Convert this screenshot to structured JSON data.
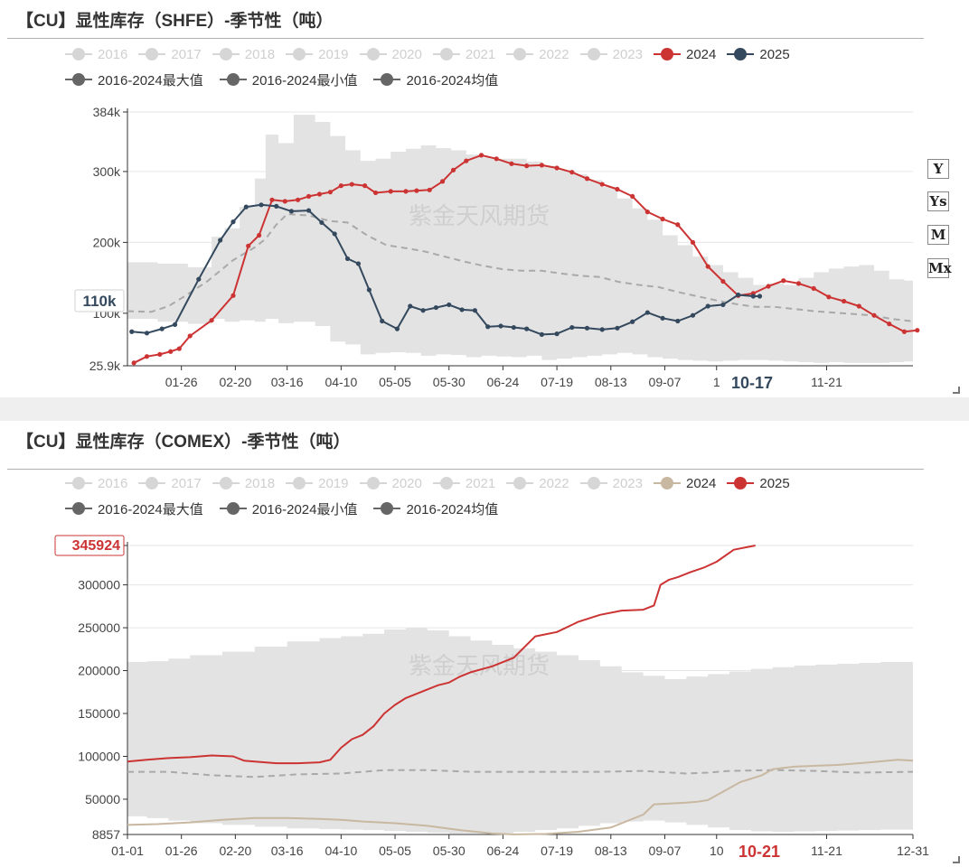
{
  "watermark": "紫金天风期货",
  "colors": {
    "c2024": "#cc3333",
    "c2025": "#34495e",
    "c2024_comex": "#c9b8a1",
    "c2025_comex": "#cc3333",
    "legend_off": "#d6d6d6",
    "legend_stat": "#666666",
    "band": "#e3e3e3",
    "mean": "#a9a9a9"
  },
  "toolbox": [
    "Y",
    "Ys",
    "M",
    "Mx"
  ],
  "charts": [
    {
      "id": "shfe",
      "title": "【CU】显性库存（SHFE）-季节性（吨）",
      "legend_row1": [
        {
          "label": "2016",
          "active": false
        },
        {
          "label": "2017",
          "active": false
        },
        {
          "label": "2018",
          "active": false
        },
        {
          "label": "2019",
          "active": false
        },
        {
          "label": "2020",
          "active": false
        },
        {
          "label": "2021",
          "active": false
        },
        {
          "label": "2022",
          "active": false
        },
        {
          "label": "2023",
          "active": false
        },
        {
          "label": "2024",
          "active": true,
          "color": "#cc3333"
        },
        {
          "label": "2025",
          "active": true,
          "color": "#34495e"
        }
      ],
      "legend_row2": [
        {
          "label": "2016-2024最大值"
        },
        {
          "label": "2016-2024最小值"
        },
        {
          "label": "2016-2024均值"
        }
      ],
      "y_tick_labels": [
        "384k",
        "300k",
        "200k",
        "100k",
        "25.9k"
      ],
      "x_tick_labels": [
        "01-26",
        "02-20",
        "03-16",
        "04-10",
        "05-05",
        "05-30",
        "06-24",
        "07-19",
        "08-13",
        "09-07",
        "1",
        "11-21"
      ],
      "pointer_y_label": "110k",
      "pointer_x_label": "10-17"
    },
    {
      "id": "comex",
      "title": "【CU】显性库存（COMEX）-季节性（吨）",
      "legend_row1": [
        {
          "label": "2016",
          "active": false
        },
        {
          "label": "2017",
          "active": false
        },
        {
          "label": "2018",
          "active": false
        },
        {
          "label": "2019",
          "active": false
        },
        {
          "label": "2020",
          "active": false
        },
        {
          "label": "2021",
          "active": false
        },
        {
          "label": "2022",
          "active": false
        },
        {
          "label": "2023",
          "active": false
        },
        {
          "label": "2024",
          "active": true,
          "color": "#c9b8a1"
        },
        {
          "label": "2025",
          "active": true,
          "color": "#cc3333"
        }
      ],
      "legend_row2": [
        {
          "label": "2016-2024最大值"
        },
        {
          "label": "2016-2024最小值"
        },
        {
          "label": "2016-2024均值"
        }
      ],
      "y_tick_labels": [
        "345924",
        "300000",
        "250000",
        "200000",
        "150000",
        "100000",
        "50000",
        "8857"
      ],
      "x_tick_labels": [
        "01-01",
        "01-26",
        "02-20",
        "03-16",
        "04-10",
        "05-05",
        "05-30",
        "06-24",
        "07-19",
        "08-13",
        "09-07",
        "10",
        "11-21",
        "12-31"
      ],
      "pointer_x_label": "10-21"
    }
  ],
  "chart_data": [
    {
      "type": "line",
      "title": "【CU】显性库存（SHFE）-季节性（吨）",
      "ylabel": "吨",
      "ylim": [
        25900,
        384000
      ],
      "x_unit": "day_of_year",
      "x_tick_days": [
        26,
        51,
        75,
        100,
        125,
        150,
        175,
        200,
        225,
        250,
        274,
        325
      ],
      "y_ticks": [
        384000,
        300000,
        200000,
        100000,
        25900
      ],
      "band": {
        "name_max": "2016-2024最大值",
        "name_min": "2016-2024最小值",
        "x": [
          1,
          15,
          29,
          40,
          46,
          53,
          60,
          65,
          71,
          78,
          88,
          95,
          102,
          109,
          116,
          123,
          130,
          137,
          144,
          151,
          158,
          165,
          172,
          179,
          186,
          193,
          200,
          207,
          214,
          221,
          228,
          235,
          242,
          249,
          256,
          263,
          270,
          277,
          284,
          291,
          298,
          305,
          312,
          319,
          326,
          333,
          340,
          347,
          354,
          361,
          365
        ],
        "max": [
          172000,
          170000,
          165000,
          208000,
          220000,
          250000,
          290000,
          352000,
          340000,
          380000,
          370000,
          350000,
          330000,
          315000,
          318000,
          328000,
          332000,
          337000,
          333000,
          330000,
          324000,
          320000,
          318000,
          318000,
          314000,
          308000,
          302000,
          296000,
          288000,
          278000,
          262000,
          248000,
          232000,
          210000,
          196000,
          180000,
          168000,
          158000,
          150000,
          140000,
          142000,
          140000,
          150000,
          158000,
          163000,
          166000,
          168000,
          160000,
          148000,
          146000,
          150000
        ],
        "min": [
          95000,
          92000,
          88000,
          85000,
          92000,
          88000,
          90000,
          88000,
          92000,
          86000,
          88000,
          82000,
          60000,
          56000,
          42000,
          44000,
          45000,
          44000,
          40000,
          42000,
          41000,
          38000,
          40000,
          39000,
          38000,
          40000,
          34000,
          36000,
          38000,
          40000,
          42000,
          44000,
          42000,
          38000,
          36000,
          34000,
          33000,
          32000,
          33000,
          34000,
          34000,
          33000,
          32000,
          31000,
          30000,
          31000,
          30000,
          30000,
          30000,
          31000,
          32000
        ]
      },
      "series": [
        {
          "name": "2016-2024均值",
          "style": "dashed",
          "x": [
            1,
            12,
            20,
            28,
            38,
            50,
            60,
            65,
            70,
            75,
            85,
            95,
            103,
            112,
            121,
            130,
            139,
            148,
            157,
            166,
            175,
            184,
            193,
            202,
            211,
            220,
            229,
            238,
            247,
            256,
            265,
            274,
            283,
            292,
            301,
            310,
            319,
            328,
            337,
            346,
            355,
            364
          ],
          "y": [
            103000,
            102000,
            110000,
            125000,
            145000,
            175000,
            193000,
            205000,
            225000,
            240000,
            238000,
            230000,
            228000,
            210000,
            196000,
            192000,
            187000,
            180000,
            173000,
            167000,
            162000,
            160000,
            160000,
            156000,
            153000,
            151000,
            144000,
            140000,
            137000,
            130000,
            124000,
            118000,
            113000,
            109000,
            109000,
            106000,
            103000,
            101000,
            99000,
            97000,
            92000,
            89000
          ]
        },
        {
          "name": "2024",
          "x": [
            4,
            10,
            16,
            21,
            25,
            30,
            40,
            50,
            57,
            62,
            68,
            74,
            80,
            85,
            90,
            95,
            100,
            105,
            111,
            116,
            123,
            130,
            135,
            141,
            147,
            152,
            158,
            165,
            172,
            179,
            186,
            193,
            200,
            207,
            214,
            221,
            228,
            235,
            242,
            249,
            256,
            263,
            270,
            277,
            284,
            291,
            298,
            305,
            312,
            319,
            326,
            333,
            340,
            347,
            354,
            361,
            367
          ],
          "y": [
            30000,
            39000,
            42000,
            46000,
            50000,
            68000,
            90000,
            125000,
            195000,
            210000,
            260000,
            258000,
            260000,
            265000,
            268000,
            271000,
            280000,
            282000,
            280000,
            270000,
            272000,
            272000,
            273000,
            274000,
            286000,
            302000,
            315000,
            323000,
            318000,
            311000,
            308000,
            309000,
            305000,
            299000,
            290000,
            282000,
            275000,
            265000,
            243000,
            233000,
            225000,
            200000,
            166000,
            145000,
            125000,
            128000,
            138000,
            146000,
            142000,
            135000,
            123000,
            117000,
            110000,
            97000,
            85000,
            74000,
            76000
          ]
        },
        {
          "name": "2025",
          "x": [
            3,
            10,
            17,
            23,
            34,
            44,
            50,
            56,
            63,
            70,
            77,
            85,
            91,
            97,
            103,
            108,
            113,
            119,
            126,
            132,
            138,
            144,
            150,
            156,
            162,
            168,
            174,
            180,
            186,
            193,
            200,
            207,
            214,
            221,
            228,
            235,
            242,
            249,
            256,
            263,
            270,
            277,
            284,
            291,
            294
          ],
          "y": [
            74000,
            72000,
            78000,
            84000,
            148000,
            203000,
            229000,
            250000,
            253000,
            251000,
            244000,
            245000,
            228000,
            212000,
            177000,
            170000,
            133000,
            89000,
            78000,
            110000,
            104000,
            108000,
            112000,
            105000,
            104000,
            81000,
            82000,
            80000,
            78000,
            70000,
            71000,
            80000,
            79000,
            77000,
            79000,
            88000,
            101000,
            93000,
            89000,
            97000,
            110000,
            112000,
            126000,
            124000,
            124000
          ]
        }
      ]
    },
    {
      "type": "line",
      "title": "【CU】显性库存（COMEX）-季节性（吨）",
      "ylabel": "吨",
      "ylim": [
        8857,
        345924
      ],
      "x_unit": "day_of_year",
      "x_tick_days": [
        1,
        26,
        51,
        75,
        100,
        125,
        150,
        175,
        200,
        225,
        250,
        274,
        325,
        365
      ],
      "y_ticks": [
        345924,
        300000,
        250000,
        200000,
        150000,
        100000,
        50000,
        8857
      ],
      "band": {
        "name_max": "2016-2024最大值",
        "name_min": "2016-2024最小值",
        "x": [
          1,
          10,
          20,
          30,
          45,
          60,
          75,
          90,
          100,
          110,
          120,
          130,
          140,
          150,
          160,
          170,
          180,
          190,
          200,
          210,
          220,
          230,
          240,
          250,
          260,
          270,
          280,
          290,
          300,
          310,
          320,
          330,
          340,
          350,
          365
        ],
        "max": [
          210000,
          211000,
          214000,
          218000,
          222000,
          228000,
          234000,
          238000,
          240000,
          243000,
          248000,
          250000,
          247000,
          240000,
          235000,
          230000,
          226000,
          222000,
          218000,
          212000,
          205000,
          198000,
          194000,
          190000,
          193000,
          196000,
          199000,
          202000,
          204000,
          206000,
          207000,
          208000,
          209000,
          210000,
          211000
        ],
        "min": [
          31000,
          30000,
          28000,
          25000,
          22000,
          20000,
          18000,
          16000,
          15000,
          14500,
          14000,
          13000,
          12000,
          11000,
          10000,
          10000,
          10500,
          12000,
          14000,
          16000,
          19000,
          22000,
          24000,
          25000,
          23000,
          20000,
          17000,
          14000,
          12500,
          12000,
          12500,
          13000,
          13500,
          14000,
          14500
        ]
      },
      "series": [
        {
          "name": "2016-2024均值",
          "style": "dashed",
          "x": [
            1,
            20,
            40,
            60,
            80,
            100,
            120,
            140,
            160,
            180,
            200,
            220,
            240,
            260,
            270,
            280,
            300,
            320,
            340,
            365
          ],
          "y": [
            82000,
            82000,
            78000,
            76000,
            79000,
            80000,
            84000,
            84000,
            82000,
            82000,
            82000,
            82000,
            83000,
            80000,
            81000,
            83000,
            84000,
            83000,
            81000,
            82000
          ]
        },
        {
          "name": "2024",
          "x": [
            1,
            15,
            30,
            45,
            60,
            75,
            90,
            100,
            110,
            125,
            140,
            155,
            170,
            180,
            195,
            210,
            225,
            240,
            245,
            260,
            265,
            270,
            285,
            295,
            300,
            310,
            320,
            330,
            345,
            358,
            365
          ],
          "y": [
            20000,
            21000,
            23000,
            26000,
            28000,
            28000,
            27000,
            26000,
            24000,
            22000,
            19000,
            14000,
            10000,
            9000,
            9500,
            12000,
            17000,
            32000,
            44000,
            46000,
            47000,
            49000,
            70000,
            78000,
            85000,
            88000,
            89000,
            90000,
            93000,
            96000,
            95000
          ]
        },
        {
          "name": "2025",
          "x": [
            1,
            10,
            20,
            30,
            40,
            50,
            55,
            60,
            70,
            80,
            90,
            95,
            100,
            105,
            110,
            115,
            120,
            125,
            130,
            135,
            140,
            145,
            150,
            155,
            160,
            170,
            180,
            190,
            200,
            210,
            220,
            230,
            240,
            245,
            248,
            252,
            256,
            262,
            268,
            274,
            282,
            292
          ],
          "y": [
            94000,
            96000,
            98000,
            99000,
            101000,
            100000,
            95000,
            94000,
            92000,
            92000,
            93000,
            96000,
            110000,
            120000,
            125000,
            135000,
            150000,
            160000,
            168000,
            173000,
            178000,
            183000,
            186000,
            193000,
            198000,
            205000,
            215000,
            240000,
            245000,
            257000,
            265000,
            270000,
            271000,
            276000,
            300000,
            306000,
            309000,
            315000,
            320000,
            327000,
            341000,
            345924
          ]
        }
      ]
    }
  ]
}
